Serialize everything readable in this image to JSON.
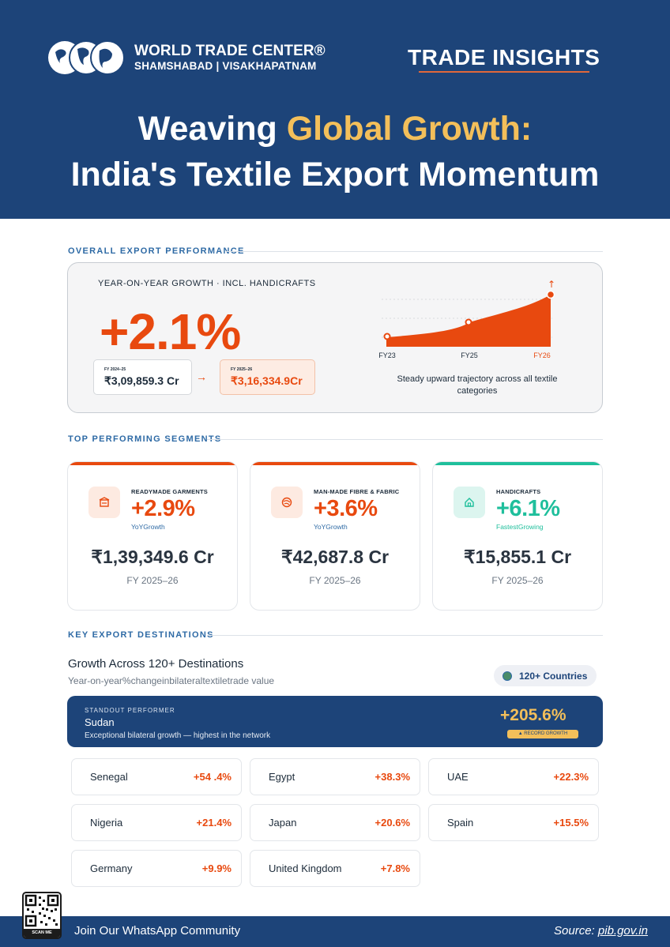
{
  "header": {
    "logo_line1": "WORLD TRADE CENTER®",
    "logo_line2": "SHAMSHABAD | VISAKHAPATNAM",
    "badge": "TRADE INSIGHTS",
    "headline_white": "Weaving ",
    "headline_accent": "Global Growth:",
    "headline_line2": "India's Textile Export Momentum",
    "accent_color": "#f3bf5a",
    "background_color": "#1d4479"
  },
  "overall": {
    "section_label": "OVERALL EXPORT PERFORMANCE",
    "subtitle": "YEAR-ON-YEAR GROWTH · INCL. HANDICRAFTS",
    "growth": "+2.1%",
    "prev_caption": "FY 2024–25",
    "prev_value": "₹3,09,859.3 Cr",
    "arrow": "→",
    "curr_caption": "FY 2025–26",
    "curr_value": "₹3,16,334.9Cr",
    "chart_caption": "Steady upward trajectory across all textile categories",
    "up_arrow": "↑"
  },
  "chart_data": {
    "type": "area",
    "x": [
      "FY23",
      "FY25",
      "FY26"
    ],
    "title": "",
    "xlabel": "",
    "ylabel": "",
    "grid": false,
    "color": "#e8490f"
  },
  "segments": {
    "section_label": "TOP PERFORMING SEGMENTS",
    "items": [
      {
        "category": "READYMADE GARMENTS",
        "growth": "+2.9%",
        "note": "YoYGrowth",
        "amount": "₹1,39,349.6 Cr",
        "fy": "FY 2025–26",
        "color": "#e8490f",
        "icon": "garment-icon"
      },
      {
        "category": "MAN-MADE FIBRE & FABRIC",
        "growth": "+3.6%",
        "note": "YoYGrowth",
        "amount": "₹42,687.8 Cr",
        "fy": "FY 2025–26",
        "color": "#e8490f",
        "icon": "fabric-icon"
      },
      {
        "category": "HANDICRAFTS",
        "growth": "+6.1%",
        "note": "FastestGrowing",
        "amount": "₹15,855.1 Cr",
        "fy": "FY 2025–26",
        "color": "#1fbf9c",
        "icon": "home-icon"
      }
    ]
  },
  "destinations": {
    "section_label": "KEY EXPORT DESTINATIONS",
    "title": "Growth Across 120+ Destinations",
    "subtitle": "Year-on-year%changeinbilateraltextiletrade value",
    "countries_badge": "120+ Countries",
    "standout": {
      "caption": "STANDOUT PERFORMER",
      "name": "Sudan",
      "description": "Exceptional bilateral growth — highest in the network",
      "growth": "+205.6%",
      "pill": "▲ RECORD GROWTH"
    },
    "list": [
      {
        "name": "Senegal",
        "growth": "+54 .4%"
      },
      {
        "name": "Egypt",
        "growth": "+38.3%"
      },
      {
        "name": "UAE",
        "growth": "+22.3%"
      },
      {
        "name": "Nigeria",
        "growth": "+21.4%"
      },
      {
        "name": "Japan",
        "growth": "+20.6%"
      },
      {
        "name": "Spain",
        "growth": "+15.5%"
      },
      {
        "name": "Germany",
        "growth": "+9.9%"
      },
      {
        "name": "United Kingdom",
        "growth": "+7.8%"
      }
    ]
  },
  "footer": {
    "qr_label": "SCAN ME",
    "join": "Join Our WhatsApp Community",
    "source_prefix": "Source: ",
    "source_link": "pib.gov.in"
  }
}
